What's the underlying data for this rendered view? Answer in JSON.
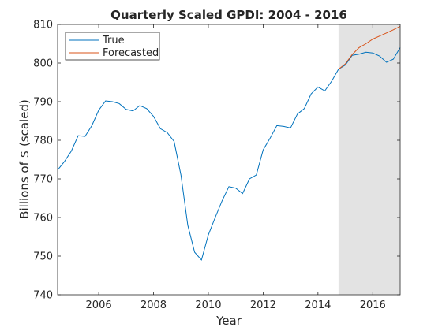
{
  "chart_data": {
    "type": "line",
    "title": "Quarterly Scaled GPDI: 2004 - 2016",
    "xlabel": "Year",
    "ylabel": "Billions of $ (scaled)",
    "xlim": [
      2004.5,
      2017.0
    ],
    "ylim": [
      740,
      810
    ],
    "xticks": [
      2006,
      2008,
      2010,
      2012,
      2014,
      2016
    ],
    "yticks": [
      740,
      750,
      760,
      770,
      780,
      790,
      800,
      810
    ],
    "shaded_region": {
      "x": [
        2014.75,
        2017.0
      ],
      "color": "#e3e3e3"
    },
    "legend": {
      "position": "top-left",
      "entries": [
        "True",
        "Forecasted"
      ]
    },
    "series": [
      {
        "name": "True",
        "color": "#0072bd",
        "x": [
          2004.5,
          2004.75,
          2005.0,
          2005.25,
          2005.5,
          2005.75,
          2006.0,
          2006.25,
          2006.5,
          2006.75,
          2007.0,
          2007.25,
          2007.5,
          2007.75,
          2008.0,
          2008.25,
          2008.5,
          2008.75,
          2009.0,
          2009.25,
          2009.5,
          2009.75,
          2010.0,
          2010.25,
          2010.5,
          2010.75,
          2011.0,
          2011.25,
          2011.5,
          2011.75,
          2012.0,
          2012.25,
          2012.5,
          2012.75,
          2013.0,
          2013.25,
          2013.5,
          2013.75,
          2014.0,
          2014.25,
          2014.5,
          2014.75,
          2015.0,
          2015.25,
          2015.5,
          2015.75,
          2016.0,
          2016.25,
          2016.5,
          2016.75,
          2017.0
        ],
        "y": [
          772.3,
          774.5,
          777.2,
          781.2,
          781.0,
          783.8,
          787.8,
          790.2,
          790.0,
          789.5,
          788.0,
          787.6,
          789.0,
          788.2,
          786.2,
          783.0,
          782.0,
          779.7,
          771.0,
          758.0,
          751.0,
          749.0,
          755.5,
          760.0,
          764.3,
          768.0,
          767.6,
          766.2,
          770.0,
          771.0,
          777.5,
          780.5,
          783.8,
          783.6,
          783.2,
          786.8,
          788.2,
          792.0,
          793.8,
          792.8,
          795.3,
          798.4,
          799.5,
          802.0,
          802.3,
          802.8,
          802.6,
          801.8,
          800.2,
          801.0,
          804.0
        ]
      },
      {
        "name": "Forecasted",
        "color": "#d95319",
        "x": [
          2014.75,
          2015.0,
          2015.25,
          2015.5,
          2015.75,
          2016.0,
          2016.25,
          2016.5,
          2016.75,
          2017.0
        ],
        "y": [
          798.4,
          799.8,
          802.2,
          804.0,
          805.0,
          806.2,
          807.0,
          807.8,
          808.6,
          809.5
        ]
      }
    ]
  }
}
